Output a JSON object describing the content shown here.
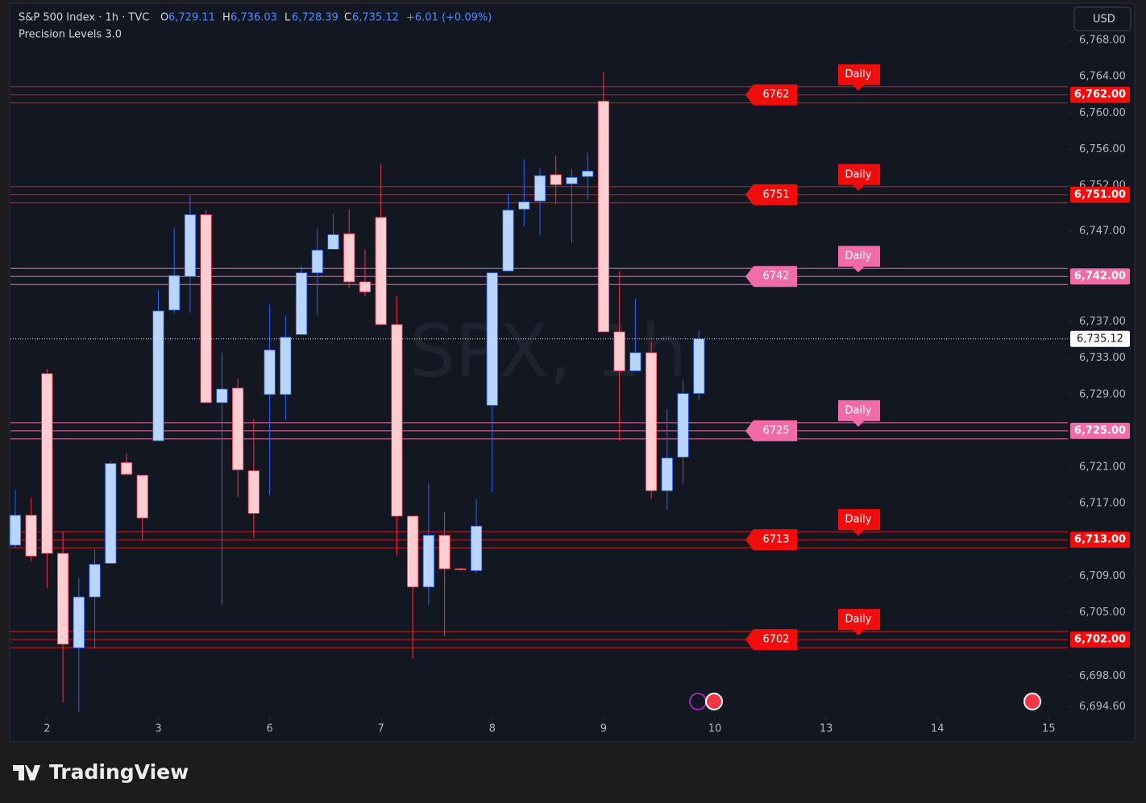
{
  "header": {
    "symbol": "S&P 500 Index · 1h · TVC",
    "o_key": "O",
    "o": "6,729.11",
    "h_key": "H",
    "h": "6,736.03",
    "l_key": "L",
    "l": "6,728.39",
    "c_key": "C",
    "c": "6,735.12",
    "change": "+6.01 (+0.09%)",
    "indicator": "Precision Levels 3.0",
    "currency": "USD",
    "watermark": "SPX, 1h",
    "brand": "TradingView"
  },
  "chart_data": {
    "type": "candlestick",
    "up_color": "#b9d5fb",
    "up_border": "#2962ff",
    "down_color": "#ffcdd2",
    "down_border": "#f23645",
    "x": [
      0,
      1,
      2,
      3,
      4,
      5,
      6,
      7,
      8,
      9,
      10,
      11,
      12,
      13,
      14,
      15,
      16,
      17,
      18,
      19,
      20,
      21,
      22,
      23,
      24,
      25,
      26,
      27,
      28,
      29,
      30,
      31,
      32,
      33,
      34,
      35,
      36,
      37,
      38,
      39,
      40,
      41,
      42,
      43
    ],
    "open": [
      6712.4,
      6715.7,
      6731.3,
      6711.5,
      6701.1,
      6706.7,
      6710.4,
      6721.5,
      6720.1,
      6723.9,
      6738.3,
      6742.0,
      6748.8,
      6728.1,
      6729.7,
      6720.6,
      6729.0,
      6729.0,
      6735.6,
      6742.4,
      6745.0,
      6746.7,
      6741.4,
      6748.5,
      6736.7,
      6715.6,
      6707.8,
      6713.5,
      6709.8,
      6709.6,
      6727.8,
      6742.6,
      6749.4,
      6750.3,
      6753.2,
      6752.2,
      6753.0,
      6761.3,
      6735.9,
      6731.6,
      6733.6,
      6718.4,
      6722.1,
      6729.11
    ],
    "high": [
      6718.5,
      6717.6,
      6731.8,
      6713.9,
      6708.8,
      6711.9,
      6721.7,
      6722.5,
      6720.1,
      6740.5,
      6747.4,
      6750.9,
      6749.3,
      6733.6,
      6730.8,
      6726.3,
      6738.9,
      6737.7,
      6743.2,
      6747.3,
      6748.9,
      6749.4,
      6745.0,
      6754.4,
      6739.8,
      6715.6,
      6719.2,
      6716.1,
      6709.9,
      6717.5,
      6742.4,
      6751.1,
      6754.9,
      6754.0,
      6755.3,
      6753.8,
      6755.6,
      6764.5,
      6742.6,
      6739.6,
      6734.8,
      6727.4,
      6730.6,
      6736.03
    ],
    "low": [
      6712.1,
      6710.6,
      6707.7,
      6695.1,
      6694.0,
      6701.0,
      6710.4,
      6720.2,
      6713.0,
      6723.9,
      6737.9,
      6738.0,
      6728.1,
      6705.8,
      6717.7,
      6713.2,
      6717.9,
      6726.2,
      6735.6,
      6737.7,
      6745.0,
      6740.7,
      6739.8,
      6736.7,
      6711.3,
      6699.9,
      6705.8,
      6702.4,
      6709.6,
      6709.3,
      6718.2,
      6742.6,
      6747.5,
      6746.5,
      6750.0,
      6745.7,
      6750.4,
      6735.9,
      6723.9,
      6731.6,
      6717.5,
      6716.3,
      6719.2,
      6728.39
    ],
    "close": [
      6715.7,
      6711.2,
      6711.5,
      6701.5,
      6706.7,
      6710.3,
      6721.4,
      6720.2,
      6715.4,
      6738.2,
      6742.1,
      6748.8,
      6728.1,
      6729.6,
      6720.7,
      6715.9,
      6733.9,
      6735.3,
      6742.4,
      6744.9,
      6746.6,
      6741.4,
      6740.3,
      6736.7,
      6715.6,
      6707.8,
      6713.5,
      6709.8,
      6709.7,
      6714.5,
      6742.4,
      6749.3,
      6750.2,
      6753.1,
      6752.1,
      6752.9,
      6753.6,
      6735.9,
      6731.6,
      6733.6,
      6718.4,
      6722.0,
      6729.1,
      6735.12
    ],
    "xlim": [
      -0.3,
      66.2
    ],
    "xticks": [
      {
        "value": 2,
        "label": "2"
      },
      {
        "value": 9,
        "label": "3"
      },
      {
        "value": 16,
        "label": "6"
      },
      {
        "value": 23,
        "label": "7"
      },
      {
        "value": 30,
        "label": "8"
      },
      {
        "value": 37,
        "label": "9"
      },
      {
        "value": 44,
        "label": "10"
      },
      {
        "value": 51,
        "label": "13"
      },
      {
        "value": 58,
        "label": "14"
      },
      {
        "value": 65,
        "label": "15"
      }
    ],
    "ylim": [
      6693.5,
      6772
    ],
    "yticks": [
      {
        "value": 6768,
        "label": "6,768.00"
      },
      {
        "value": 6764,
        "label": "6,764.00"
      },
      {
        "value": 6760,
        "label": "6,760.00"
      },
      {
        "value": 6756,
        "label": "6,756.00"
      },
      {
        "value": 6752,
        "label": "6,752.00"
      },
      {
        "value": 6747,
        "label": "6,747.00"
      },
      {
        "value": 6737,
        "label": "6,737.00"
      },
      {
        "value": 6733,
        "label": "6,733.00"
      },
      {
        "value": 6729,
        "label": "6,729.00"
      },
      {
        "value": 6721,
        "label": "6,721.00"
      },
      {
        "value": 6717,
        "label": "6,717.00"
      },
      {
        "value": 6709,
        "label": "6,709.00"
      },
      {
        "value": 6705,
        "label": "6,705.00"
      },
      {
        "value": 6698,
        "label": "6,698.00"
      },
      {
        "value": 6694.6,
        "label": "6,694.60"
      }
    ],
    "levels": [
      {
        "value": 6762,
        "label": "6762",
        "axis_label": "6,762.00",
        "tag": "Daily",
        "color": "#f20d0d"
      },
      {
        "value": 6751,
        "label": "6751",
        "axis_label": "6,751.00",
        "tag": "Daily",
        "color": "#f20d0d"
      },
      {
        "value": 6742,
        "label": "6742",
        "axis_label": "6,742.00",
        "tag": "Daily",
        "color": "#f06ba8"
      },
      {
        "value": 6725,
        "label": "6725",
        "axis_label": "6,725.00",
        "tag": "Daily",
        "color": "#f06ba8"
      },
      {
        "value": 6713,
        "label": "6713",
        "axis_label": "6,713.00",
        "tag": "Daily",
        "color": "#f20d0d"
      },
      {
        "value": 6702,
        "label": "6702",
        "axis_label": "6,702.00",
        "tag": "Daily",
        "color": "#f20d0d"
      }
    ],
    "last_price": {
      "value": 6735.12,
      "label": "6,735.12"
    }
  }
}
